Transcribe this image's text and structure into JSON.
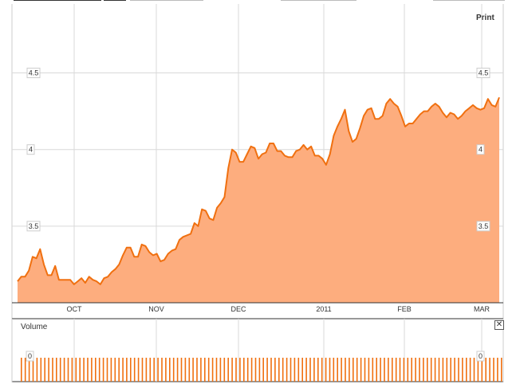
{
  "print_label": "Print",
  "volume_title": "Volume",
  "close_label": "✕",
  "colors": {
    "line": "#f07010",
    "fill": "#fdad7e",
    "grid": "#d9d9d9",
    "volume": "#f07010"
  },
  "chart_data": [
    {
      "type": "area",
      "title": "",
      "xlabel": "",
      "ylabel": "",
      "grid": true,
      "x_tick_labels": [
        "OCT",
        "NOV",
        "DEC",
        "2011",
        "FEB",
        "MAR"
      ],
      "y_ticks": [
        3.5,
        4,
        4.5
      ],
      "y_tick_labels": [
        "3.5",
        "4",
        "4.5"
      ],
      "ylim": [
        3.0,
        4.95
      ],
      "series": [
        {
          "values": [
            3.14,
            3.17,
            3.17,
            3.21,
            3.3,
            3.29,
            3.35,
            3.25,
            3.18,
            3.18,
            3.24,
            3.15,
            3.15,
            3.15,
            3.15,
            3.12,
            3.14,
            3.16,
            3.13,
            3.17,
            3.15,
            3.14,
            3.12,
            3.16,
            3.17,
            3.2,
            3.22,
            3.25,
            3.31,
            3.36,
            3.36,
            3.3,
            3.3,
            3.38,
            3.37,
            3.33,
            3.31,
            3.32,
            3.27,
            3.28,
            3.32,
            3.34,
            3.35,
            3.41,
            3.43,
            3.44,
            3.45,
            3.52,
            3.5,
            3.61,
            3.6,
            3.55,
            3.54,
            3.62,
            3.65,
            3.69,
            3.88,
            4.0,
            3.98,
            3.92,
            3.92,
            3.97,
            4.02,
            4.01,
            3.94,
            3.97,
            3.98,
            4.04,
            4.04,
            3.99,
            3.99,
            3.96,
            3.95,
            3.95,
            3.99,
            4.0,
            4.03,
            4.0,
            4.02,
            3.96,
            3.96,
            3.94,
            3.9,
            3.97,
            4.09,
            4.15,
            4.2,
            4.26,
            4.12,
            4.05,
            4.07,
            4.14,
            4.22,
            4.26,
            4.27,
            4.2,
            4.2,
            4.22,
            4.3,
            4.33,
            4.3,
            4.28,
            4.22,
            4.15,
            4.17,
            4.17,
            4.2,
            4.23,
            4.25,
            4.25,
            4.28,
            4.3,
            4.28,
            4.24,
            4.21,
            4.24,
            4.23,
            4.2,
            4.22,
            4.25,
            4.27,
            4.29,
            4.27,
            4.26,
            4.27,
            4.33,
            4.29,
            4.28,
            4.34
          ]
        }
      ]
    },
    {
      "type": "bar",
      "title": "Volume",
      "y_tick_labels": [
        "0"
      ],
      "grid": true,
      "bar_count": 124,
      "values": [
        1
      ]
    }
  ]
}
